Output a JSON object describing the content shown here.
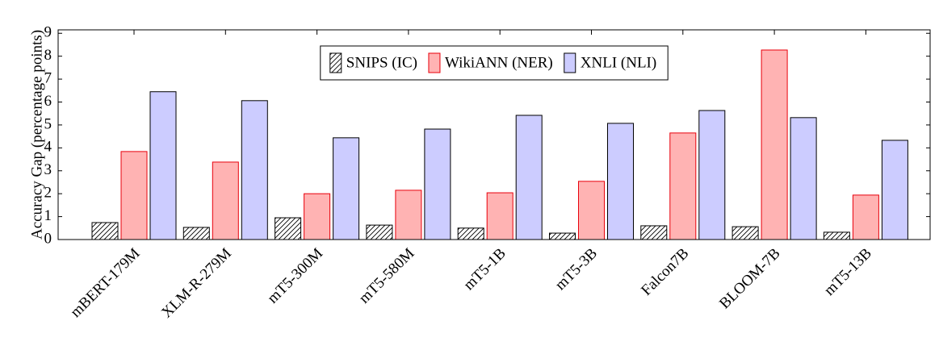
{
  "chart_data": {
    "type": "bar",
    "y_label": "Accuracy Gap (percentage points)",
    "categories": [
      "mBERT-179M",
      "XLM-R-279M",
      "mT5-300M",
      "mT5-580M",
      "mT5-1B",
      "mT5-3B",
      "Falcon7B",
      "BLOOM-7B",
      "mT5-13B"
    ],
    "series": [
      {
        "name": "SNIPS (IC)",
        "color": "#000000",
        "fill": "hatch",
        "values": [
          0.74,
          0.53,
          0.95,
          0.63,
          0.5,
          0.28,
          0.6,
          0.56,
          0.32
        ]
      },
      {
        "name": "WikiANN (NER)",
        "color": "#e8000b",
        "fill": "#ffb3b3",
        "values": [
          3.84,
          3.38,
          2.0,
          2.15,
          2.04,
          2.54,
          4.65,
          8.27,
          1.94
        ]
      },
      {
        "name": "XNLI (NLI)",
        "color": "#000000",
        "fill": "#ccccff",
        "values": [
          6.45,
          6.06,
          4.44,
          4.82,
          5.42,
          5.07,
          5.63,
          5.32,
          4.33
        ]
      }
    ],
    "ylim": [
      0,
      9.15
    ],
    "yticks": [
      0,
      1,
      2,
      3,
      4,
      5,
      6,
      7,
      8,
      9
    ],
    "legend": "top"
  }
}
